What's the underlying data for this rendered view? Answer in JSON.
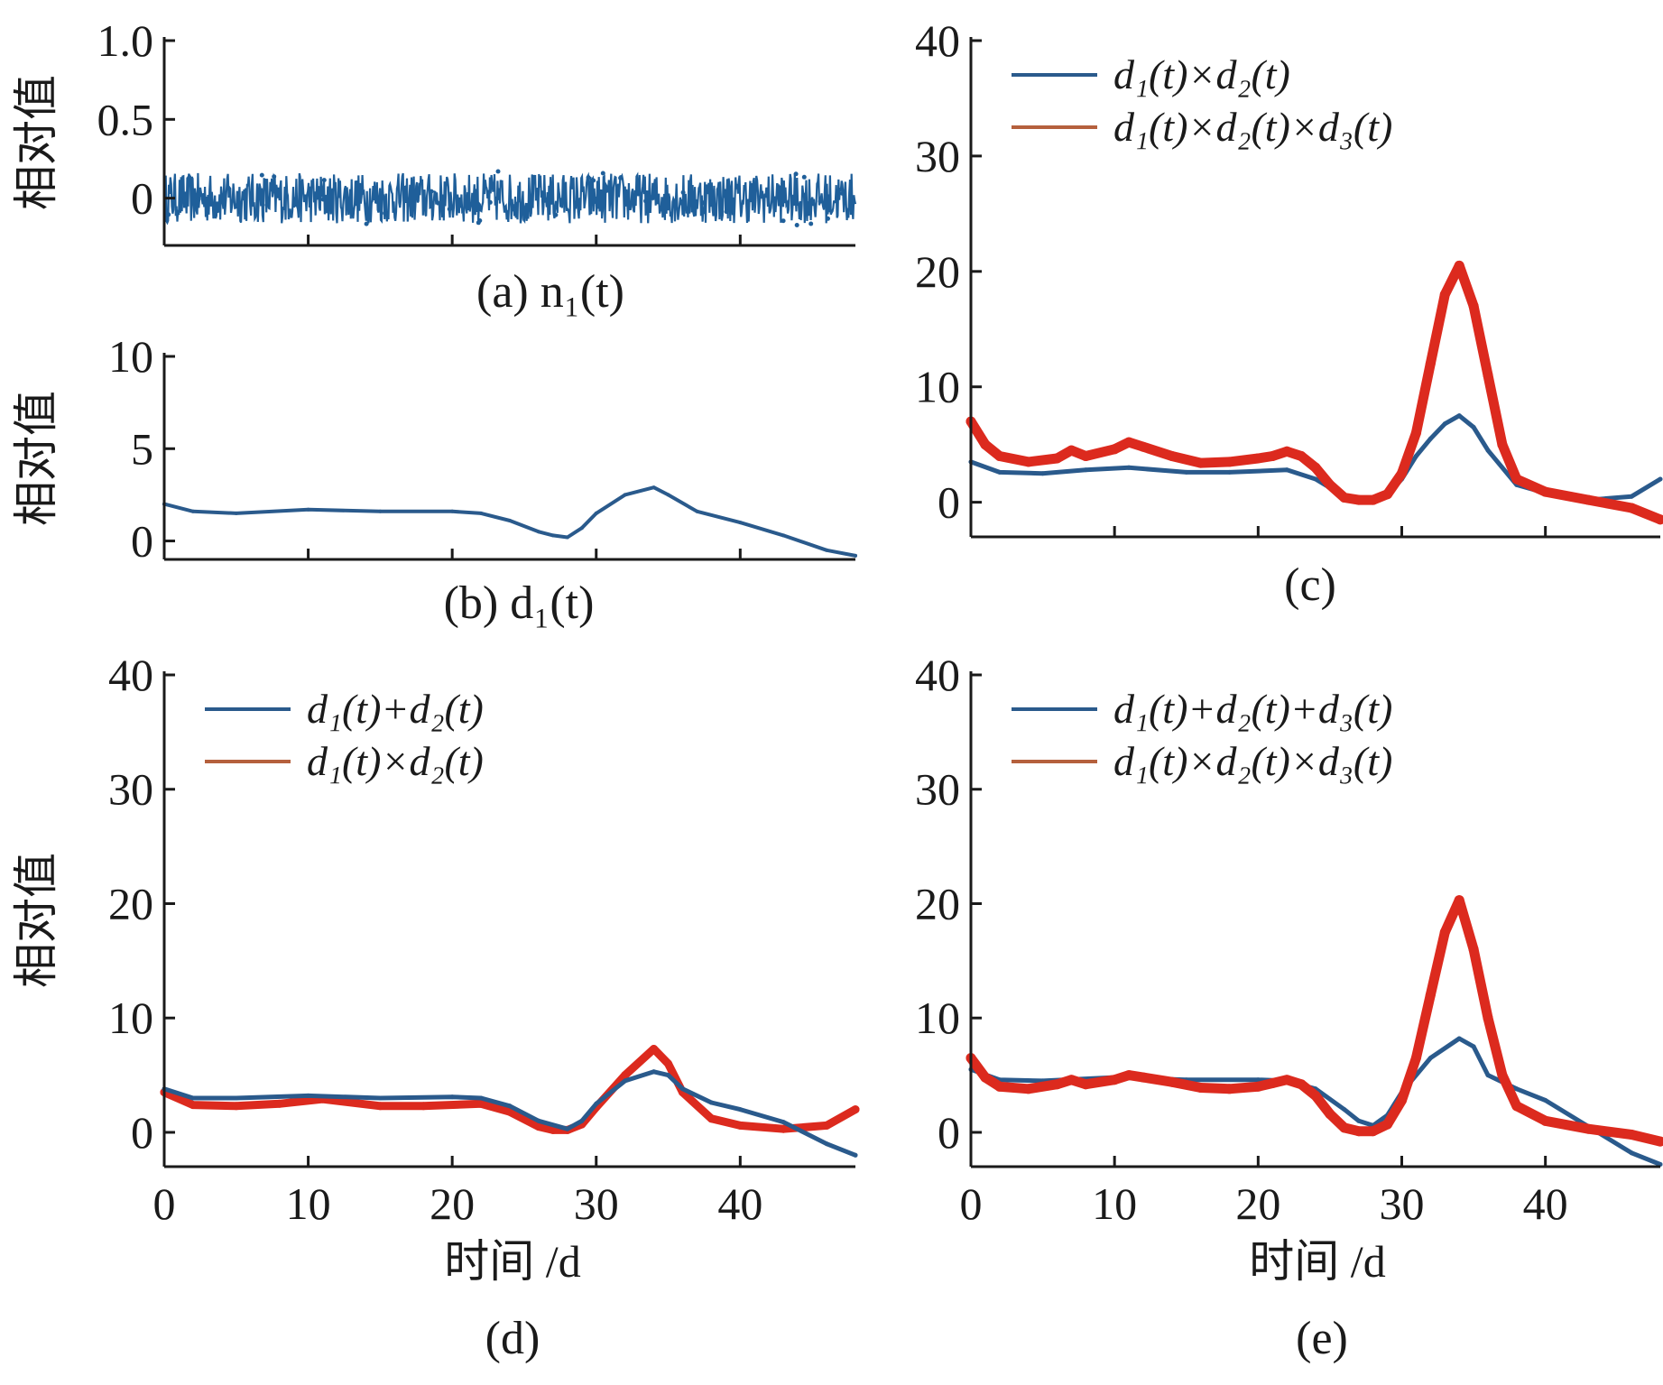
{
  "figure": {
    "y_axis_label": "相对值",
    "x_axis_label": "时间 /d"
  },
  "colors": {
    "blue": "#2a5a8c",
    "blue_noise": "#1f5f9a",
    "red": "#dc2a1e",
    "legend_red": "#b5603d",
    "axis": "#1a1a1a"
  },
  "chart_data": [
    {
      "id": "a",
      "type": "line",
      "caption": "(a) n₁(t)",
      "ylabel": "相对值",
      "xlim": [
        0,
        48
      ],
      "ylim": [
        -0.3,
        1.0
      ],
      "yticks": [
        0,
        0.5,
        1.0
      ],
      "ytick_labels": [
        "0",
        "0.5",
        "1.0"
      ],
      "xticks": [
        10,
        20,
        30,
        40
      ],
      "xtick_labels": [],
      "series": [
        {
          "name": "n₁(t)",
          "color": "#1f5f9a",
          "noise": true,
          "mean": 0.0,
          "amplitude": 0.16,
          "x": [
            0,
            48
          ],
          "y": [
            0,
            0
          ]
        }
      ]
    },
    {
      "id": "b",
      "type": "line",
      "caption": "(b) d₁(t)",
      "ylabel": "相对值",
      "xlim": [
        0,
        48
      ],
      "ylim": [
        -1,
        10
      ],
      "yticks": [
        0,
        5,
        10
      ],
      "ytick_labels": [
        "0",
        "5",
        "10"
      ],
      "xticks": [
        10,
        20,
        30,
        40
      ],
      "xtick_labels": [],
      "series": [
        {
          "name": "d₁(t)",
          "color": "#2a5a8c",
          "x": [
            0,
            2,
            5,
            10,
            15,
            20,
            22,
            24,
            26,
            27,
            28,
            29,
            30,
            32,
            34,
            35,
            37,
            40,
            43,
            46,
            48
          ],
          "y": [
            2.0,
            1.6,
            1.5,
            1.7,
            1.6,
            1.6,
            1.5,
            1.1,
            0.5,
            0.3,
            0.2,
            0.7,
            1.5,
            2.5,
            2.9,
            2.5,
            1.6,
            1.0,
            0.3,
            -0.5,
            -0.8
          ]
        }
      ]
    },
    {
      "id": "c",
      "type": "line",
      "caption": "(c)",
      "ylabel": "",
      "xlim": [
        0,
        48
      ],
      "ylim": [
        -3,
        40
      ],
      "yticks": [
        0,
        10,
        20,
        30,
        40
      ],
      "ytick_labels": [
        "0",
        "10",
        "20",
        "30",
        "40"
      ],
      "xticks": [
        10,
        20,
        30,
        40
      ],
      "xtick_labels": [],
      "legend": [
        {
          "label": "d₁(t)×d₂(t)",
          "color": "#2a5a8c"
        },
        {
          "label": "d₁(t)×d₂(t)×d₃(t)",
          "color": "#b5603d"
        }
      ],
      "series": [
        {
          "name": "d₁(t)×d₂(t)",
          "color": "#2a5a8c",
          "width": 5,
          "x": [
            0,
            2,
            5,
            8,
            11,
            15,
            18,
            22,
            24,
            26,
            28,
            29,
            30,
            31,
            32,
            33,
            34,
            35,
            36,
            38,
            40,
            43,
            46,
            48
          ],
          "y": [
            3.5,
            2.6,
            2.5,
            2.8,
            3.0,
            2.6,
            2.6,
            2.8,
            2.0,
            0.5,
            0.2,
            0.6,
            2.0,
            4.0,
            5.5,
            6.8,
            7.5,
            6.5,
            4.5,
            1.5,
            0.8,
            0.2,
            0.5,
            2.0
          ]
        },
        {
          "name": "d₁(t)×d₂(t)×d₃(t)",
          "color": "#dc2a1e",
          "width": 11,
          "x": [
            0,
            1,
            2,
            4,
            6,
            7,
            8,
            10,
            11,
            12,
            14,
            16,
            18,
            20,
            21,
            22,
            23,
            24,
            25,
            26,
            27,
            28,
            29,
            30,
            31,
            32,
            33,
            34,
            35,
            36,
            37,
            38,
            40,
            43,
            46,
            48
          ],
          "y": [
            7.0,
            5.0,
            4.0,
            3.5,
            3.8,
            4.5,
            4.0,
            4.6,
            5.2,
            4.8,
            4.0,
            3.4,
            3.5,
            3.8,
            4.0,
            4.4,
            4.0,
            3.0,
            1.5,
            0.4,
            0.2,
            0.2,
            0.7,
            2.5,
            6.0,
            12.0,
            18.0,
            20.5,
            17.0,
            11.0,
            5.0,
            2.0,
            0.9,
            0.2,
            -0.5,
            -1.5
          ]
        }
      ]
    },
    {
      "id": "d",
      "type": "line",
      "caption": "(d)",
      "ylabel": "相对值",
      "xlabel": "时间 /d",
      "xlim": [
        0,
        48
      ],
      "ylim": [
        -3,
        40
      ],
      "yticks": [
        0,
        10,
        20,
        30,
        40
      ],
      "ytick_labels": [
        "0",
        "10",
        "20",
        "30",
        "40"
      ],
      "xticks": [
        0,
        10,
        20,
        30,
        40
      ],
      "xtick_labels": [
        "0",
        "10",
        "20",
        "30",
        "40"
      ],
      "legend": [
        {
          "label": "d₁(t)+d₂(t)",
          "color": "#2a5a8c"
        },
        {
          "label": "d₁(t)×d₂(t)",
          "color": "#b5603d"
        }
      ],
      "series": [
        {
          "name": "d₁(t)×d₂(t)",
          "color": "#dc2a1e",
          "width": 9,
          "x": [
            0,
            2,
            5,
            8,
            11,
            15,
            18,
            22,
            24,
            26,
            27,
            28,
            29,
            30,
            32,
            34,
            35,
            36,
            38,
            40,
            43,
            46,
            48
          ],
          "y": [
            3.5,
            2.4,
            2.3,
            2.5,
            2.9,
            2.3,
            2.3,
            2.5,
            1.8,
            0.5,
            0.2,
            0.2,
            0.7,
            2.2,
            5.0,
            7.3,
            6.0,
            3.5,
            1.2,
            0.6,
            0.3,
            0.6,
            2.0
          ]
        },
        {
          "name": "d₁(t)+d₂(t)",
          "color": "#2a5a8c",
          "width": 5,
          "x": [
            0,
            2,
            5,
            10,
            15,
            20,
            22,
            24,
            26,
            28,
            29,
            30,
            32,
            34,
            35,
            36,
            38,
            40,
            43,
            46,
            48
          ],
          "y": [
            3.8,
            3.0,
            3.0,
            3.2,
            3.0,
            3.1,
            3.0,
            2.3,
            1.0,
            0.3,
            1.0,
            2.5,
            4.5,
            5.3,
            5.0,
            3.8,
            2.6,
            2.0,
            0.9,
            -1.0,
            -2.0
          ]
        }
      ]
    },
    {
      "id": "e",
      "type": "line",
      "caption": "(e)",
      "ylabel": "",
      "xlabel": "时间 /d",
      "xlim": [
        0,
        48
      ],
      "ylim": [
        -3,
        40
      ],
      "yticks": [
        0,
        10,
        20,
        30,
        40
      ],
      "ytick_labels": [
        "0",
        "10",
        "20",
        "30",
        "40"
      ],
      "xticks": [
        0,
        10,
        20,
        30,
        40
      ],
      "xtick_labels": [
        "0",
        "10",
        "20",
        "30",
        "40"
      ],
      "legend": [
        {
          "label": "d₁(t)+d₂(t)+d₃(t)",
          "color": "#2a5a8c"
        },
        {
          "label": "d₁(t)×d₂(t)×d₃(t)",
          "color": "#b5603d"
        }
      ],
      "series": [
        {
          "name": "d₁(t)+d₂(t)+d₃(t)",
          "color": "#2a5a8c",
          "width": 5,
          "x": [
            0,
            2,
            5,
            10,
            15,
            20,
            22,
            24,
            26,
            27,
            28,
            29,
            30,
            32,
            34,
            35,
            36,
            38,
            40,
            43,
            46,
            48
          ],
          "y": [
            5.5,
            4.6,
            4.5,
            4.8,
            4.6,
            4.6,
            4.5,
            3.8,
            2.0,
            1.0,
            0.6,
            1.5,
            3.5,
            6.5,
            8.2,
            7.5,
            5.0,
            3.8,
            2.8,
            0.5,
            -1.8,
            -2.8
          ]
        },
        {
          "name": "d₁(t)×d₂(t)×d₃(t)",
          "color": "#dc2a1e",
          "width": 11,
          "x": [
            0,
            1,
            2,
            4,
            6,
            7,
            8,
            10,
            11,
            12,
            14,
            16,
            18,
            20,
            21,
            22,
            23,
            24,
            25,
            26,
            27,
            28,
            29,
            30,
            31,
            32,
            33,
            34,
            35,
            36,
            37,
            38,
            40,
            43,
            46,
            48
          ],
          "y": [
            6.5,
            4.8,
            4.0,
            3.8,
            4.2,
            4.6,
            4.2,
            4.6,
            5.0,
            4.8,
            4.4,
            3.9,
            3.8,
            4.0,
            4.3,
            4.6,
            4.2,
            3.2,
            1.6,
            0.4,
            0.1,
            0.1,
            0.7,
            2.8,
            6.5,
            12.0,
            17.5,
            20.3,
            16.0,
            10.0,
            5.0,
            2.3,
            1.0,
            0.3,
            -0.2,
            -0.8
          ]
        }
      ]
    }
  ]
}
